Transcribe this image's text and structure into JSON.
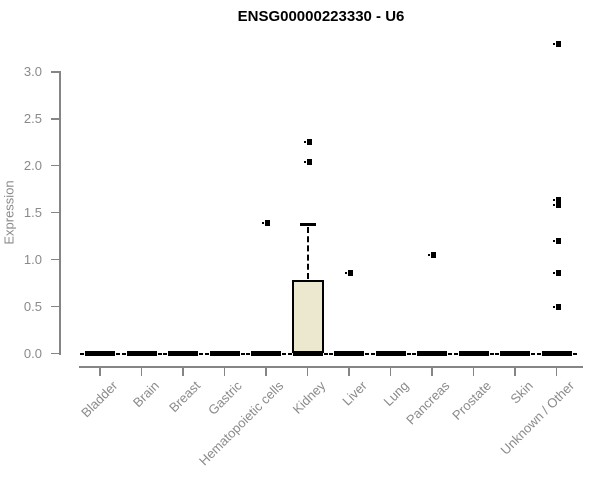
{
  "chart_data": {
    "type": "boxplot",
    "title": "ENSG00000223330 - U6",
    "xlabel": "",
    "ylabel": "Expression",
    "ylim": [
      0,
      3.4
    ],
    "yticks": [
      0.0,
      0.5,
      1.0,
      1.5,
      2.0,
      2.5,
      3.0
    ],
    "grid": false,
    "legend": false,
    "categories": [
      "Bladder",
      "Brain",
      "Breast",
      "Gastric",
      "Hematopoietic cells",
      "Kidney",
      "Liver",
      "Lung",
      "Pancreas",
      "Prostate",
      "Skin",
      "Unknown / Other"
    ],
    "boxes": [
      {
        "name": "Bladder",
        "low": 0,
        "q1": 0,
        "median": 0,
        "q3": 0,
        "high": 0,
        "outliers": []
      },
      {
        "name": "Brain",
        "low": 0,
        "q1": 0,
        "median": 0,
        "q3": 0,
        "high": 0,
        "outliers": []
      },
      {
        "name": "Breast",
        "low": 0,
        "q1": 0,
        "median": 0,
        "q3": 0,
        "high": 0,
        "outliers": []
      },
      {
        "name": "Gastric",
        "low": 0,
        "q1": 0,
        "median": 0,
        "q3": 0,
        "high": 0,
        "outliers": []
      },
      {
        "name": "Hematopoietic cells",
        "low": 0,
        "q1": 0,
        "median": 0,
        "q3": 0,
        "high": 0,
        "outliers": [
          1.39
        ]
      },
      {
        "name": "Kidney",
        "low": 0,
        "q1": 0,
        "median": 0,
        "q3": 0.78,
        "high": 1.38,
        "outliers": [
          2.04,
          2.25
        ]
      },
      {
        "name": "Liver",
        "low": 0,
        "q1": 0,
        "median": 0,
        "q3": 0,
        "high": 0,
        "outliers": [
          0.86
        ]
      },
      {
        "name": "Lung",
        "low": 0,
        "q1": 0,
        "median": 0,
        "q3": 0,
        "high": 0,
        "outliers": []
      },
      {
        "name": "Pancreas",
        "low": 0,
        "q1": 0,
        "median": 0,
        "q3": 0,
        "high": 0,
        "outliers": [
          1.05
        ]
      },
      {
        "name": "Prostate",
        "low": 0,
        "q1": 0,
        "median": 0,
        "q3": 0,
        "high": 0,
        "outliers": []
      },
      {
        "name": "Skin",
        "low": 0,
        "q1": 0,
        "median": 0,
        "q3": 0,
        "high": 0,
        "outliers": []
      },
      {
        "name": "Unknown / Other",
        "low": 0,
        "q1": 0,
        "median": 0,
        "q3": 0,
        "high": 0,
        "outliers": [
          3.3,
          1.64,
          1.58,
          1.2,
          0.86,
          0.5
        ]
      }
    ],
    "colors": {
      "box_fill": "#ece8cf",
      "box_border": "#000000",
      "median": "#000000",
      "outlier": "#000000",
      "axis": "#858585",
      "tick_label": "#8a8a8a",
      "title": "#000000",
      "background": "#ffffff"
    }
  }
}
